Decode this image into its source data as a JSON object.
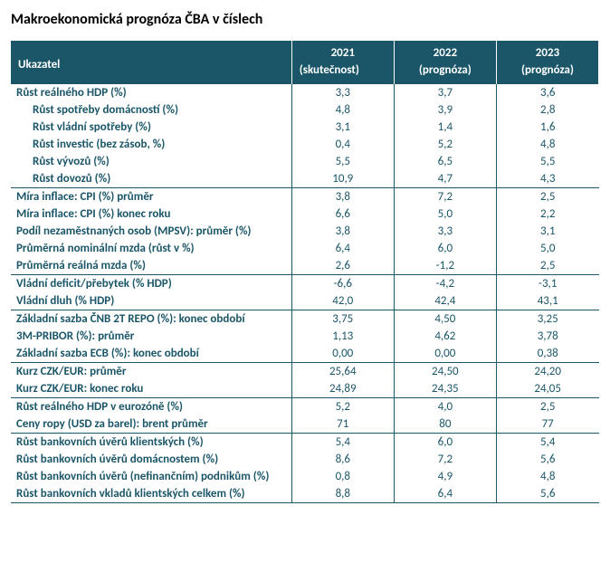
{
  "title": "Makroekonomická prognóza ČBA v číslech",
  "colors": {
    "header_bg": "#1a5668",
    "header_fg": "#ffffff",
    "body_fg": "#1a5668",
    "border": "#1a5668",
    "page_bg": "#ffffff"
  },
  "columns": {
    "indicator_label": "Ukazatel",
    "y2021_top": "2021",
    "y2021_sub": "(skutečnost)",
    "y2022_top": "2022",
    "y2022_sub": "(prognóza)",
    "y2023_top": "2023",
    "y2023_sub": "(prognóza)"
  },
  "rows": [
    {
      "label": "Růst reálného HDP (%)",
      "v": [
        "3,3",
        "3,7",
        "3,6"
      ],
      "indent": false,
      "sep": false
    },
    {
      "label": "Růst spotřeby domácností (%)",
      "v": [
        "4,8",
        "3,9",
        "2,8"
      ],
      "indent": true,
      "sep": false
    },
    {
      "label": "Růst vládní spotřeby (%)",
      "v": [
        "3,1",
        "1,4",
        "1,6"
      ],
      "indent": true,
      "sep": false
    },
    {
      "label": "Růst investic (bez zásob, %)",
      "v": [
        "0,4",
        "5,2",
        "4,8"
      ],
      "indent": true,
      "sep": false
    },
    {
      "label": "Růst vývozů (%)",
      "v": [
        "5,5",
        "6,5",
        "5,5"
      ],
      "indent": true,
      "sep": false
    },
    {
      "label": "Růst dovozů (%)",
      "v": [
        "10,9",
        "4,7",
        "4,3"
      ],
      "indent": true,
      "sep": true
    },
    {
      "label": "Míra inflace: CPI (%) průměr",
      "v": [
        "3,8",
        "7,2",
        "2,5"
      ],
      "indent": false,
      "sep": false
    },
    {
      "label": "Míra inflace: CPI (%) konec roku",
      "v": [
        "6,6",
        "5,0",
        "2,2"
      ],
      "indent": false,
      "sep": false
    },
    {
      "label": "Podíl nezaměstnaných osob (MPSV): průměr (%)",
      "v": [
        "3,8",
        "3,3",
        "3,1"
      ],
      "indent": false,
      "sep": false
    },
    {
      "label": "Průměrná nominální mzda (růst v %)",
      "v": [
        "6,4",
        "6,0",
        "5,0"
      ],
      "indent": false,
      "sep": false
    },
    {
      "label": "Průměrná reálná mzda (%)",
      "v": [
        "2,6",
        "-1,2",
        "2,5"
      ],
      "indent": false,
      "sep": true
    },
    {
      "label": "Vládní deficit/přebytek (% HDP)",
      "v": [
        "-6,6",
        "-4,2",
        "-3,1"
      ],
      "indent": false,
      "sep": false
    },
    {
      "label": "Vládní dluh (% HDP)",
      "v": [
        "42,0",
        "42,4",
        "43,1"
      ],
      "indent": false,
      "sep": true
    },
    {
      "label": "Základní sazba ČNB 2T REPO (%): konec období",
      "v": [
        "3,75",
        "4,50",
        "3,25"
      ],
      "indent": false,
      "sep": false
    },
    {
      "label": "3M-PRIBOR (%): průměr",
      "v": [
        "1,13",
        "4,62",
        "3,78"
      ],
      "indent": false,
      "sep": false
    },
    {
      "label": "Základní sazba ECB (%): konec období",
      "v": [
        "0,00",
        "0,00",
        "0,38"
      ],
      "indent": false,
      "sep": true
    },
    {
      "label": "Kurz CZK/EUR: průměr",
      "v": [
        "25,64",
        "24,50",
        "24,20"
      ],
      "indent": false,
      "sep": false
    },
    {
      "label": "Kurz CZK/EUR: konec roku",
      "v": [
        "24,89",
        "24,35",
        "24,05"
      ],
      "indent": false,
      "sep": true
    },
    {
      "label": "Růst reálného HDP v eurozóně (%)",
      "v": [
        "5,2",
        "4,0",
        "2,5"
      ],
      "indent": false,
      "sep": false
    },
    {
      "label": "Ceny ropy (USD za barel): brent průměr",
      "v": [
        "71",
        "80",
        "77"
      ],
      "indent": false,
      "sep": true
    },
    {
      "label": "Růst bankovních úvěrů klientských (%)",
      "v": [
        "5,4",
        "6,0",
        "5,4"
      ],
      "indent": false,
      "sep": false
    },
    {
      "label": "Růst bankovních úvěrů domácnostem (%)",
      "v": [
        "8,6",
        "7,2",
        "5,6"
      ],
      "indent": false,
      "sep": false
    },
    {
      "label": "Růst bankovních úvěrů (nefinančním) podnikům (%)",
      "v": [
        "0,8",
        "4,9",
        "4,8"
      ],
      "indent": false,
      "sep": false
    },
    {
      "label": "Růst bankovních vkladů klientských celkem (%)",
      "v": [
        "8,8",
        "6,4",
        "5,6"
      ],
      "indent": false,
      "sep": true
    }
  ]
}
